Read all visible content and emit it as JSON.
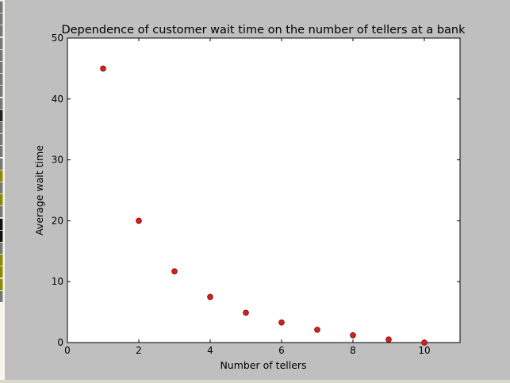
{
  "background": {
    "strip_colors": [
      "#777777",
      "#777777",
      "#777777",
      "#777777",
      "#777777",
      "#777777",
      "#777777",
      "#777777",
      "#777777",
      "#222222",
      "#777777",
      "#777777",
      "#777777",
      "#777777",
      "#8a8a00",
      "#777777",
      "#8a8a00",
      "#777777",
      "#111111",
      "#111111",
      "#777777",
      "#8a8a00",
      "#8a8a00",
      "#8a8a00",
      "#777777"
    ]
  },
  "colors": {
    "window_bg": "#bfbfbf",
    "plot_bg": "#ffffff",
    "marker_fill": "#d62020",
    "marker_edge": "#7a0000",
    "text": "#000000"
  },
  "chart_data": {
    "type": "scatter",
    "title": "Dependence of customer wait time on the number of tellers at a bank",
    "xlabel": "Number of tellers",
    "ylabel": "Average wait time",
    "xlim": [
      0,
      11
    ],
    "ylim": [
      0,
      50
    ],
    "xticks": [
      0,
      2,
      4,
      6,
      8,
      10
    ],
    "yticks": [
      0,
      10,
      20,
      30,
      40,
      50
    ],
    "grid": false,
    "legend": "none",
    "series": [
      {
        "x": [
          1,
          2,
          3,
          4,
          5,
          6,
          7,
          8,
          9,
          10
        ],
        "y": [
          45,
          20,
          11.7,
          7.5,
          4.9,
          3.3,
          2.1,
          1.2,
          0.5,
          0
        ]
      }
    ]
  }
}
